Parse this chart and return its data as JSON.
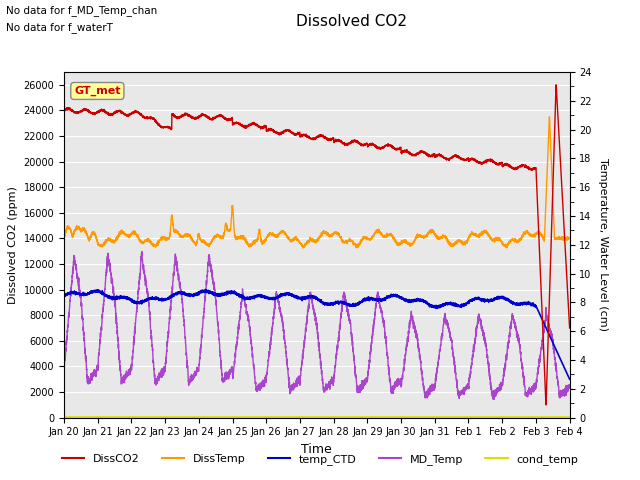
{
  "title": "Dissolved CO2",
  "subtitle_lines": [
    "No data for f_MD_Temp_chan",
    "No data for f_waterT"
  ],
  "xlabel": "Time",
  "ylabel_left": "Dissolved CO2 (ppm)",
  "ylabel_right": "Temperature, Water Level (cm)",
  "ylim_left": [
    0,
    27000
  ],
  "ylim_right": [
    0,
    24
  ],
  "yticks_left": [
    0,
    2000,
    4000,
    6000,
    8000,
    10000,
    12000,
    14000,
    16000,
    18000,
    20000,
    22000,
    24000,
    26000
  ],
  "yticks_right": [
    0,
    2,
    4,
    6,
    8,
    10,
    12,
    14,
    16,
    18,
    20,
    22,
    24
  ],
  "background_color": "#ffffff",
  "plot_bg_color": "#e8e8e8",
  "grid_color": "white",
  "color_dissCO2": "#cc0000",
  "color_dissTemp": "#ff9900",
  "color_tempCTD": "#0000cc",
  "color_mdTemp": "#aa44cc",
  "color_condTemp": "#dddd00",
  "box_label": "GT_met",
  "box_label_color": "#cc0000",
  "box_bg_color": "#ffff99",
  "box_border_color": "#888888",
  "xtick_labels": [
    "Jan 20",
    "Jan 21",
    "Jan 22",
    "Jan 23",
    "Jan 24",
    "Jan 25",
    "Jan 26",
    "Jan 27",
    "Jan 28",
    "Jan 29",
    "Jan 30",
    "Jan 31",
    "Feb 1",
    "Feb 2",
    "Feb 3",
    "Feb 4"
  ]
}
